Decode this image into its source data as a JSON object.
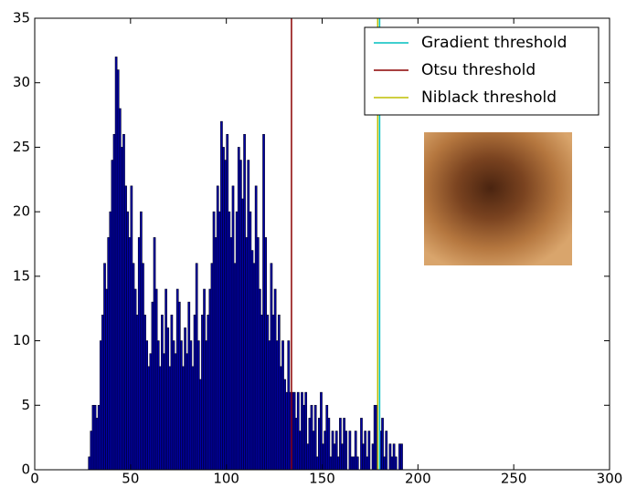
{
  "chart_data": {
    "type": "histogram",
    "bins": [
      28,
      29,
      30,
      31,
      32,
      33,
      34,
      35,
      36,
      37,
      38,
      39,
      40,
      41,
      42,
      43,
      44,
      45,
      46,
      47,
      48,
      49,
      50,
      51,
      52,
      53,
      54,
      55,
      56,
      57,
      58,
      59,
      60,
      61,
      62,
      63,
      64,
      65,
      66,
      67,
      68,
      69,
      70,
      71,
      72,
      73,
      74,
      75,
      76,
      77,
      78,
      79,
      80,
      81,
      82,
      83,
      84,
      85,
      86,
      87,
      88,
      89,
      90,
      91,
      92,
      93,
      94,
      95,
      96,
      97,
      98,
      99,
      100,
      101,
      102,
      103,
      104,
      105,
      106,
      107,
      108,
      109,
      110,
      111,
      112,
      113,
      114,
      115,
      116,
      117,
      118,
      119,
      120,
      121,
      122,
      123,
      124,
      125,
      126,
      127,
      128,
      129,
      130,
      131,
      132,
      133,
      134,
      135,
      136,
      137,
      138,
      139,
      140,
      141,
      142,
      143,
      144,
      145,
      146,
      147,
      148,
      149,
      150,
      151,
      152,
      153,
      154,
      155,
      156,
      157,
      158,
      159,
      160,
      161,
      162,
      163,
      164,
      165,
      166,
      167,
      168,
      169,
      170,
      171,
      172,
      173,
      174,
      175,
      176,
      177,
      178,
      179,
      180,
      181,
      182,
      183,
      184,
      185,
      186,
      187,
      188,
      189,
      190,
      191,
      192
    ],
    "values": [
      1,
      3,
      5,
      5,
      4,
      5,
      10,
      12,
      16,
      14,
      18,
      20,
      24,
      26,
      32,
      31,
      28,
      25,
      26,
      22,
      20,
      18,
      22,
      16,
      14,
      12,
      18,
      20,
      16,
      12,
      10,
      8,
      9,
      13,
      18,
      14,
      10,
      8,
      12,
      9,
      14,
      11,
      8,
      12,
      10,
      9,
      14,
      13,
      10,
      8,
      11,
      9,
      13,
      10,
      8,
      12,
      16,
      10,
      7,
      12,
      14,
      10,
      12,
      14,
      16,
      20,
      18,
      22,
      20,
      27,
      25,
      24,
      26,
      20,
      18,
      22,
      16,
      20,
      25,
      24,
      21,
      26,
      18,
      24,
      20,
      17,
      16,
      22,
      18,
      14,
      12,
      26,
      18,
      12,
      10,
      16,
      12,
      14,
      10,
      12,
      8,
      10,
      7,
      6,
      10,
      6,
      6,
      6,
      4,
      6,
      3,
      6,
      5,
      6,
      2,
      4,
      5,
      3,
      5,
      1,
      4,
      6,
      2,
      3,
      5,
      4,
      1,
      3,
      2,
      3,
      1,
      4,
      2,
      4,
      3,
      0,
      3,
      1,
      1,
      3,
      1,
      0,
      4,
      2,
      3,
      1,
      3,
      0,
      2,
      5,
      5,
      0,
      3,
      4,
      1,
      3,
      0,
      2,
      1,
      2,
      1,
      0,
      2,
      2
    ],
    "color": "#0000a8",
    "thresholds": [
      {
        "name": "Gradient threshold",
        "color": "#00bfbf",
        "value": 180
      },
      {
        "name": "Otsu threshold",
        "color": "#8b0000",
        "value": 134
      },
      {
        "name": "Niblack threshold",
        "color": "#bfbf00",
        "value": 179
      }
    ],
    "xlim": [
      0,
      300
    ],
    "xticks": [
      0,
      50,
      100,
      150,
      200,
      250,
      300
    ],
    "ylim": [
      0,
      35
    ],
    "yticks": [
      0,
      5,
      10,
      15,
      20,
      25,
      30,
      35
    ],
    "legend": "upper right"
  }
}
